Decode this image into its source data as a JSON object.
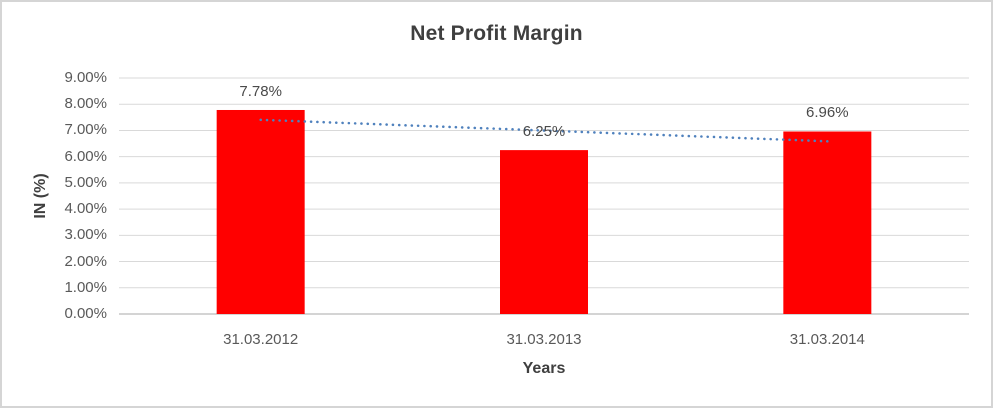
{
  "chart": {
    "background": "#ffffff",
    "border_color": "#d5d5d5"
  },
  "chart_data": {
    "type": "bar",
    "title": "Net Profit Margin",
    "xlabel": "Years",
    "ylabel": "IN (%)",
    "categories": [
      "31.03.2012",
      "31.03.2013",
      "31.03.2014"
    ],
    "series": [
      {
        "name": "Net Profit Margin",
        "color": "#ff0000",
        "values": [
          7.78,
          6.25,
          6.96
        ]
      }
    ],
    "data_labels": [
      "7.78%",
      "6.25%",
      "6.96%"
    ],
    "y_ticks": [
      "9.00%",
      "8.00%",
      "7.00%",
      "6.00%",
      "5.00%",
      "4.00%",
      "3.00%",
      "2.00%",
      "1.00%",
      "0.00%"
    ],
    "ylim": [
      0,
      9
    ],
    "y_tick_step": 1,
    "grid": true,
    "legend_position": "none",
    "gridline_color": "#d9d9d9",
    "axis_line_color": "#c6c6c6",
    "tick_text_color": "#595959",
    "title_color": "#3f3f3f",
    "data_label_color": "#4a4a4a",
    "trendline": {
      "type": "linear",
      "style": "dotted",
      "color": "#4f81bd"
    }
  }
}
